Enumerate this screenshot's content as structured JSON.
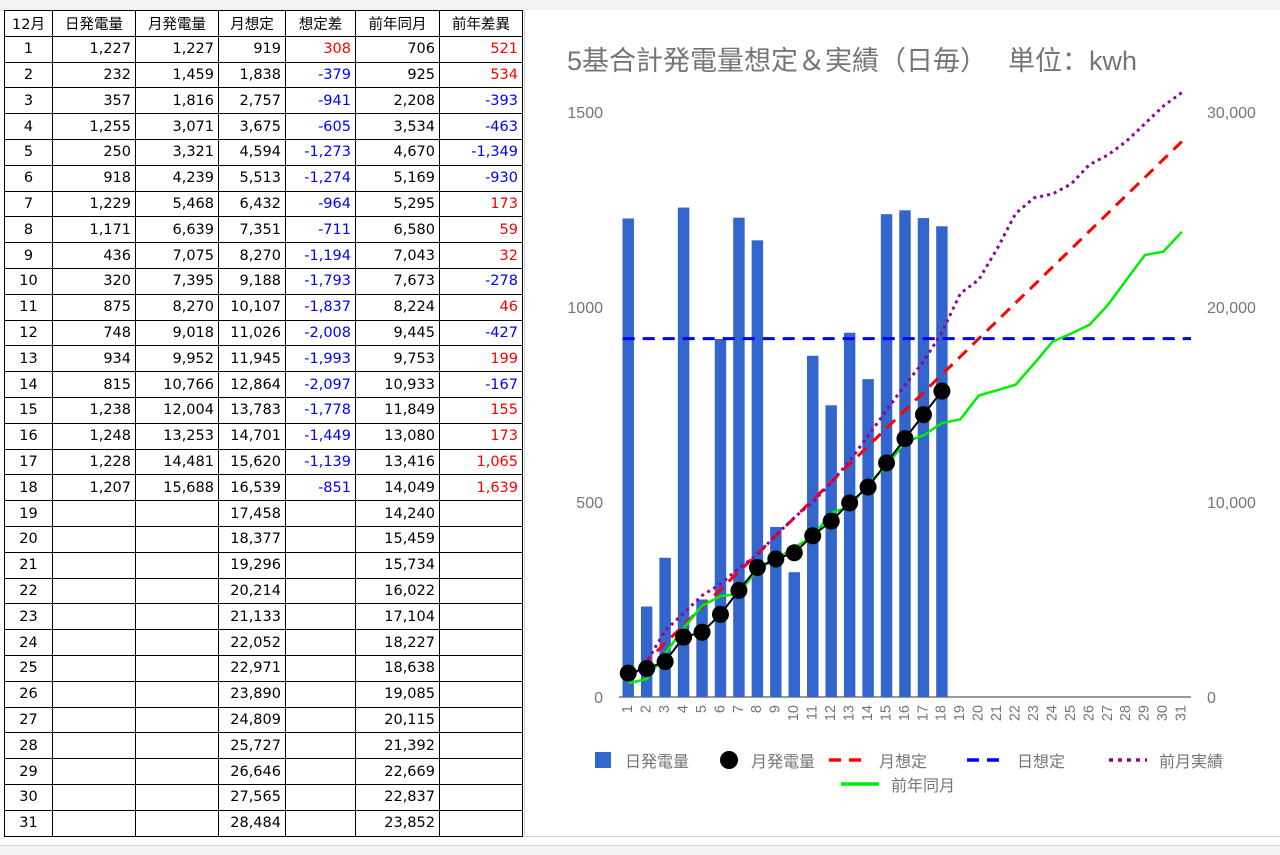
{
  "table": {
    "headers": [
      "12月",
      "日発電量",
      "月発電量",
      "月想定",
      "想定差",
      "前年同月",
      "前年差異"
    ],
    "rows": [
      [
        "1",
        "1,227",
        "1,227",
        "919",
        "308",
        "706",
        "521"
      ],
      [
        "2",
        "232",
        "1,459",
        "1,838",
        "-379",
        "925",
        "534"
      ],
      [
        "3",
        "357",
        "1,816",
        "2,757",
        "-941",
        "2,208",
        "-393"
      ],
      [
        "4",
        "1,255",
        "3,071",
        "3,675",
        "-605",
        "3,534",
        "-463"
      ],
      [
        "5",
        "250",
        "3,321",
        "4,594",
        "-1,273",
        "4,670",
        "-1,349"
      ],
      [
        "6",
        "918",
        "4,239",
        "5,513",
        "-1,274",
        "5,169",
        "-930"
      ],
      [
        "7",
        "1,229",
        "5,468",
        "6,432",
        "-964",
        "5,295",
        "173"
      ],
      [
        "8",
        "1,171",
        "6,639",
        "7,351",
        "-711",
        "6,580",
        "59"
      ],
      [
        "9",
        "436",
        "7,075",
        "8,270",
        "-1,194",
        "7,043",
        "32"
      ],
      [
        "10",
        "320",
        "7,395",
        "9,188",
        "-1,793",
        "7,673",
        "-278"
      ],
      [
        "11",
        "875",
        "8,270",
        "10,107",
        "-1,837",
        "8,224",
        "46"
      ],
      [
        "12",
        "748",
        "9,018",
        "11,026",
        "-2,008",
        "9,445",
        "-427"
      ],
      [
        "13",
        "934",
        "9,952",
        "11,945",
        "-1,993",
        "9,753",
        "199"
      ],
      [
        "14",
        "815",
        "10,766",
        "12,864",
        "-2,097",
        "10,933",
        "-167"
      ],
      [
        "15",
        "1,238",
        "12,004",
        "13,783",
        "-1,778",
        "11,849",
        "155"
      ],
      [
        "16",
        "1,248",
        "13,253",
        "14,701",
        "-1,449",
        "13,080",
        "173"
      ],
      [
        "17",
        "1,228",
        "14,481",
        "15,620",
        "-1,139",
        "13,416",
        "1,065"
      ],
      [
        "18",
        "1,207",
        "15,688",
        "16,539",
        "-851",
        "14,049",
        "1,639"
      ],
      [
        "19",
        "",
        "",
        "17,458",
        "",
        "14,240",
        ""
      ],
      [
        "20",
        "",
        "",
        "18,377",
        "",
        "15,459",
        ""
      ],
      [
        "21",
        "",
        "",
        "19,296",
        "",
        "15,734",
        ""
      ],
      [
        "22",
        "",
        "",
        "20,214",
        "",
        "16,022",
        ""
      ],
      [
        "23",
        "",
        "",
        "21,133",
        "",
        "17,104",
        ""
      ],
      [
        "24",
        "",
        "",
        "22,052",
        "",
        "18,227",
        ""
      ],
      [
        "25",
        "",
        "",
        "22,971",
        "",
        "18,638",
        ""
      ],
      [
        "26",
        "",
        "",
        "23,890",
        "",
        "19,085",
        ""
      ],
      [
        "27",
        "",
        "",
        "24,809",
        "",
        "20,115",
        ""
      ],
      [
        "28",
        "",
        "",
        "25,727",
        "",
        "21,392",
        ""
      ],
      [
        "29",
        "",
        "",
        "26,646",
        "",
        "22,669",
        ""
      ],
      [
        "30",
        "",
        "",
        "27,565",
        "",
        "22,837",
        ""
      ],
      [
        "31",
        "",
        "",
        "28,484",
        "",
        "23,852",
        ""
      ]
    ]
  },
  "colors": {
    "positive": "#ff0000",
    "negative": "#0000ff",
    "bar": "#3366cc",
    "monthly_line": "#000000",
    "monthly_target": "#ff0000",
    "daily_target": "#0000ff",
    "prev_month": "#990099",
    "prev_year": "#00ee00"
  },
  "chart_data": {
    "type": "bar",
    "title": "5基合計発電量想定＆実績（日毎）　 単位：kwh",
    "categories": [
      "1",
      "2",
      "3",
      "4",
      "5",
      "6",
      "7",
      "8",
      "9",
      "10",
      "11",
      "12",
      "13",
      "14",
      "15",
      "16",
      "17",
      "18",
      "19",
      "20",
      "21",
      "22",
      "23",
      "24",
      "25",
      "26",
      "27",
      "28",
      "29",
      "30",
      "31"
    ],
    "left_axis": {
      "ticks": [
        "0",
        "500",
        "1000",
        "1500"
      ],
      "range": [
        0,
        1500
      ]
    },
    "right_axis": {
      "ticks": [
        "0",
        "10,000",
        "20,000",
        "30,000"
      ],
      "range": [
        0,
        30000
      ]
    },
    "legend_position": "bottom",
    "series": [
      {
        "name": "日発電量",
        "kind": "bar",
        "axis": "left",
        "color": "#3366cc",
        "values": [
          1227,
          232,
          357,
          1255,
          250,
          918,
          1229,
          1171,
          436,
          320,
          875,
          748,
          934,
          815,
          1238,
          1248,
          1228,
          1207,
          null,
          null,
          null,
          null,
          null,
          null,
          null,
          null,
          null,
          null,
          null,
          null,
          null
        ]
      },
      {
        "name": "月発電量",
        "kind": "line-markers",
        "axis": "right",
        "color": "#000000",
        "values": [
          1227,
          1459,
          1816,
          3071,
          3321,
          4239,
          5468,
          6639,
          7075,
          7395,
          8270,
          9018,
          9952,
          10766,
          12004,
          13253,
          14481,
          15688,
          null,
          null,
          null,
          null,
          null,
          null,
          null,
          null,
          null,
          null,
          null,
          null,
          null
        ]
      },
      {
        "name": "月想定",
        "kind": "dashed",
        "axis": "right",
        "color": "#ff0000",
        "values": [
          919,
          1838,
          2757,
          3675,
          4594,
          5513,
          6432,
          7351,
          8270,
          9188,
          10107,
          11026,
          11945,
          12864,
          13783,
          14701,
          15620,
          16539,
          17458,
          18377,
          19296,
          20214,
          21133,
          22052,
          22971,
          23890,
          24809,
          25727,
          26646,
          27565,
          28484
        ]
      },
      {
        "name": "日想定",
        "kind": "dashed",
        "axis": "left",
        "color": "#0000ff",
        "values": [
          919,
          919,
          919,
          919,
          919,
          919,
          919,
          919,
          919,
          919,
          919,
          919,
          919,
          919,
          919,
          919,
          919,
          919,
          919,
          919,
          919,
          919,
          919,
          919,
          919,
          919,
          919,
          919,
          919,
          919,
          919
        ]
      },
      {
        "name": "前月実績",
        "kind": "dotted",
        "axis": "right",
        "color": "#990099",
        "values": [
          900,
          1800,
          3400,
          4300,
          5200,
          5800,
          6600,
          7300,
          8300,
          9200,
          10000,
          11000,
          12100,
          13400,
          14700,
          16000,
          17200,
          18700,
          20700,
          21400,
          23000,
          24800,
          25600,
          25800,
          26300,
          27300,
          27800,
          28500,
          29400,
          30300,
          31000
        ]
      },
      {
        "name": "前年同月",
        "kind": "line",
        "axis": "right",
        "color": "#00ee00",
        "values": [
          706,
          925,
          2208,
          3534,
          4670,
          5169,
          5295,
          6580,
          7043,
          7673,
          8224,
          9445,
          9753,
          10933,
          11849,
          13080,
          13416,
          14049,
          14240,
          15459,
          15734,
          16022,
          17104,
          18227,
          18638,
          19085,
          20115,
          21392,
          22669,
          22837,
          23852
        ]
      }
    ]
  }
}
